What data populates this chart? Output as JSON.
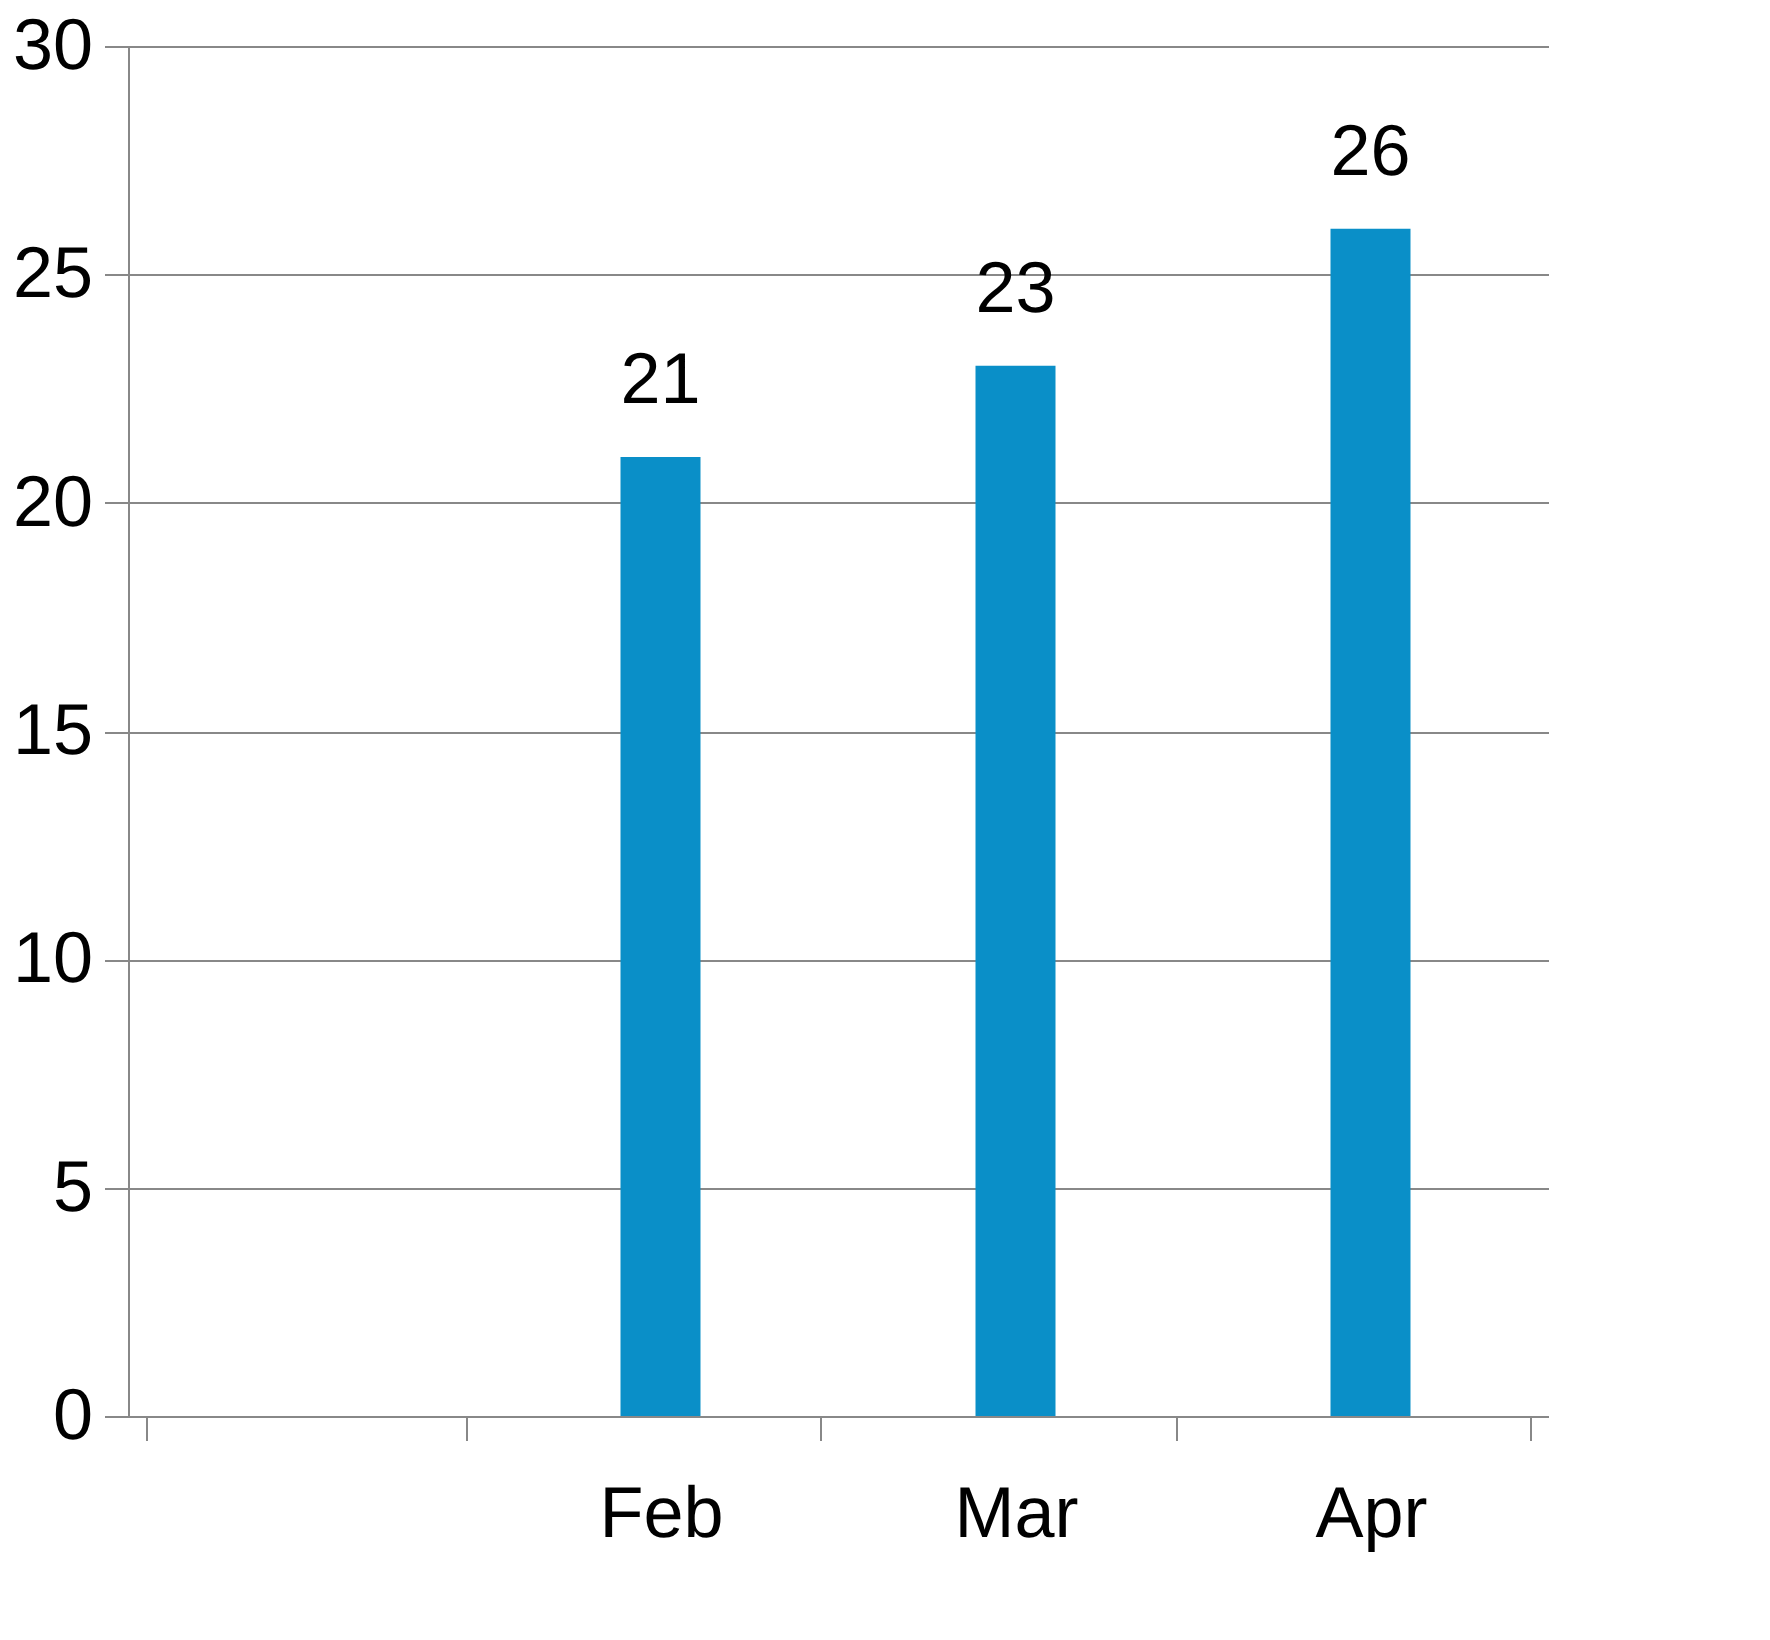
{
  "chart_data": {
    "type": "bar",
    "categories": [
      null,
      "Feb",
      "Mar",
      "Apr"
    ],
    "values": [
      null,
      21,
      23,
      26
    ],
    "color": "#0a8fc8",
    "ylim": [
      0,
      30
    ],
    "yticks": [
      0,
      5,
      10,
      15,
      20,
      25,
      30
    ],
    "grid": "y",
    "data_labels": true
  }
}
